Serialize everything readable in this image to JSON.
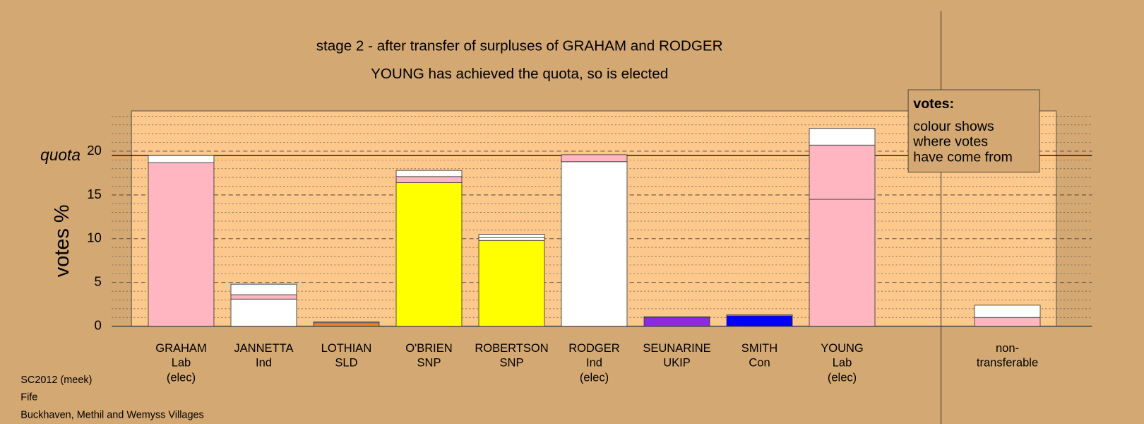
{
  "chart_data": {
    "type": "stacked_bar",
    "title": "stage 2 - after transfer of surpluses of GRAHAM and RODGER",
    "subtitle": "YOUNG has achieved the quota, so is elected",
    "y_label": "votes %",
    "ylim": [
      0,
      24.6
    ],
    "yticks": [
      0,
      5,
      10,
      15,
      20
    ],
    "minor_yticks": [
      1,
      2,
      3,
      4,
      6,
      7,
      8,
      9,
      11,
      12,
      13,
      14,
      16,
      17,
      18,
      19,
      21,
      22,
      23,
      24
    ],
    "quota": {
      "value": 19.5,
      "label": "quota"
    },
    "legend": {
      "title": "votes:",
      "lines": [
        "colour shows",
        "where votes",
        "have come from"
      ]
    },
    "bars": [
      {
        "label": [
          "GRAHAM",
          "Lab",
          "(elec)"
        ],
        "segments": [
          {
            "color": "#ffb6c1",
            "value": 18.7
          },
          {
            "color": "#ffffff",
            "value": 0.8
          }
        ]
      },
      {
        "label": [
          "JANNETTA",
          "Ind"
        ],
        "segments": [
          {
            "color": "#ffffff",
            "value": 3.1
          },
          {
            "color": "#ffb6c1",
            "value": 0.5
          },
          {
            "color": "#ffffff",
            "value": 1.2
          }
        ]
      },
      {
        "label": [
          "LOTHIAN",
          "SLD"
        ],
        "segments": [
          {
            "color": "#e8821e",
            "value": 0.4
          },
          {
            "color": "#ffffff",
            "value": 0.1
          }
        ]
      },
      {
        "label": [
          "O'BRIEN",
          "SNP"
        ],
        "segments": [
          {
            "color": "#ffff00",
            "value": 16.4
          },
          {
            "color": "#ffb6c1",
            "value": 0.7
          },
          {
            "color": "#ffffff",
            "value": 0.7
          }
        ]
      },
      {
        "label": [
          "ROBERTSON",
          "SNP"
        ],
        "segments": [
          {
            "color": "#ffff00",
            "value": 9.8
          },
          {
            "color": "#ffffff",
            "value": 0.3
          },
          {
            "color": "#ffffff",
            "value": 0.4
          }
        ]
      },
      {
        "label": [
          "RODGER",
          "Ind",
          "(elec)"
        ],
        "segments": [
          {
            "color": "#ffffff",
            "value": 18.8
          },
          {
            "color": "#ffb6c1",
            "value": 0.8
          }
        ]
      },
      {
        "label": [
          "SEUNARINE",
          "UKIP"
        ],
        "segments": [
          {
            "color": "#8a2be2",
            "value": 1.0
          },
          {
            "color": "#ffffff",
            "value": 0.1
          }
        ]
      },
      {
        "label": [
          "SMITH",
          "Con"
        ],
        "segments": [
          {
            "color": "#0000ff",
            "value": 1.2
          },
          {
            "color": "#ffffff",
            "value": 0.1
          }
        ]
      },
      {
        "label": [
          "YOUNG",
          "Lab",
          "(elec)"
        ],
        "segments": [
          {
            "color": "#ffb6c1",
            "value": 14.5
          },
          {
            "color": "#ffb6c1",
            "value": 6.2
          },
          {
            "color": "#ffffff",
            "value": 1.9
          }
        ]
      },
      {
        "label": [
          "non-",
          "transferable"
        ],
        "segments": [
          {
            "color": "#ffb6c1",
            "value": 1.0
          },
          {
            "color": "#ffffff",
            "value": 1.4
          }
        ]
      }
    ],
    "footer": [
      "SC2012 (meek)",
      "Fife",
      "Buckhaven, Methil and Wemyss Villages"
    ]
  }
}
